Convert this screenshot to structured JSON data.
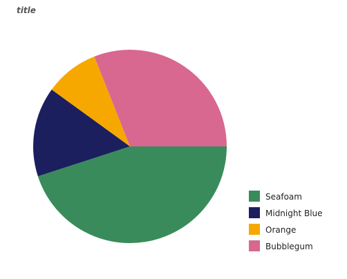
{
  "chart_data": {
    "type": "pie",
    "title": "title",
    "start_angle_deg": 0,
    "direction": "clockwise",
    "legend_position": "right",
    "series": [
      {
        "categories": [
          "Seafoam",
          "Midnight Blue",
          "Orange",
          "Bubblegum"
        ],
        "values": [
          45,
          15,
          9,
          31
        ],
        "colors": [
          "#3a8b5b",
          "#1b1f5e",
          "#f7a800",
          "#d8688f"
        ]
      }
    ]
  }
}
